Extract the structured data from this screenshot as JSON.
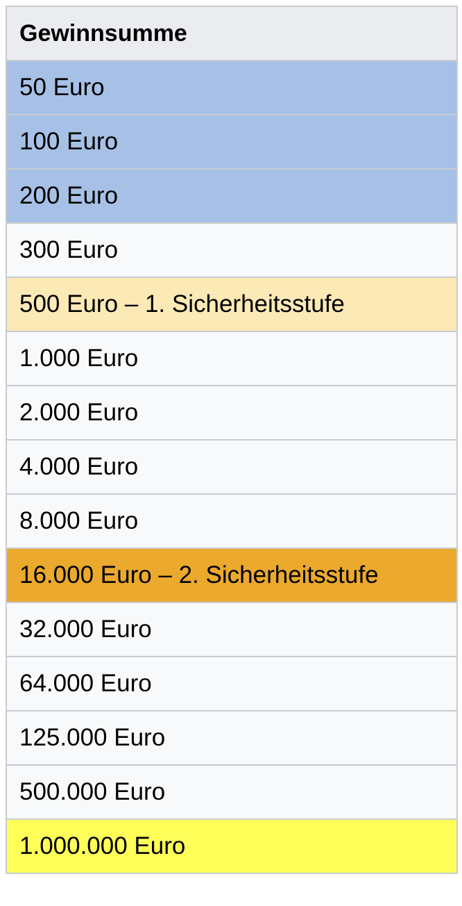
{
  "table": {
    "header": "Gewinnsumme",
    "rows": [
      {
        "label": "50 Euro",
        "color": "#a7c1e6"
      },
      {
        "label": "100 Euro",
        "color": "#a7c1e6"
      },
      {
        "label": "200 Euro",
        "color": "#a7c1e6"
      },
      {
        "label": "300 Euro",
        "color": "#f8f9fa"
      },
      {
        "label": "500 Euro – 1. Sicherheitsstufe",
        "color": "#fbe9b6"
      },
      {
        "label": "1.000 Euro",
        "color": "#f8f9fa"
      },
      {
        "label": "2.000 Euro",
        "color": "#f8f9fa"
      },
      {
        "label": "4.000 Euro",
        "color": "#f8f9fa"
      },
      {
        "label": "8.000 Euro",
        "color": "#f8f9fa"
      },
      {
        "label": "16.000 Euro – 2. Sicherheitsstufe",
        "color": "#eba92e"
      },
      {
        "label": "32.000 Euro",
        "color": "#f8f9fa"
      },
      {
        "label": "64.000 Euro",
        "color": "#f8f9fa"
      },
      {
        "label": "125.000 Euro",
        "color": "#f8f9fa"
      },
      {
        "label": "500.000 Euro",
        "color": "#f8f9fa"
      },
      {
        "label": "1.000.000 Euro",
        "color": "#ffff59"
      }
    ]
  }
}
